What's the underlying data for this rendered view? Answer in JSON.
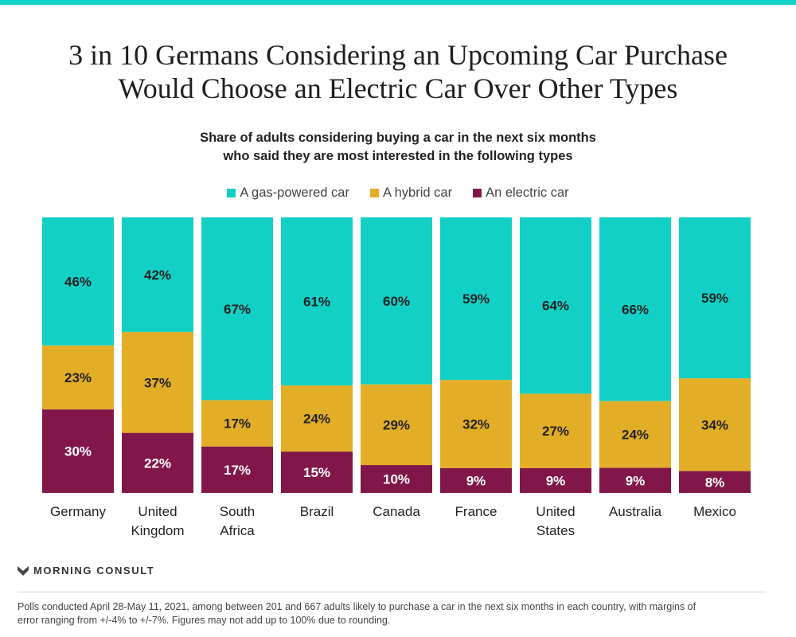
{
  "title_line1": "3 in 10 Germans Considering an Upcoming Car Purchase",
  "title_line2": "Would Choose an Electric Car Over Other Types",
  "subtitle_line1": "Share of adults considering buying a car in the next six months",
  "subtitle_line2": "who said they are most interested in the following types",
  "brand": "MORNING CONSULT",
  "footnote_line1": "Polls conducted April 28-May 11, 2021, among between 201 and 667 adults likely to purchase a car in the next six months in each country, with margins of",
  "footnote_line2": "error ranging from +/-4% to +/-7%. Figures may not add up to 100% due to rounding.",
  "colors": {
    "gas": "#12d0c6",
    "hybrid": "#e3ae27",
    "electric": "#811749",
    "top_rule": "#12d0c6"
  },
  "chart_data": {
    "type": "bar",
    "stacked": true,
    "categories": [
      [
        "Germany"
      ],
      [
        "United",
        "Kingdom"
      ],
      [
        "South",
        "Africa"
      ],
      [
        "Brazil"
      ],
      [
        "Canada"
      ],
      [
        "France"
      ],
      [
        "United",
        "States"
      ],
      [
        "Australia"
      ],
      [
        "Mexico"
      ]
    ],
    "series": [
      {
        "name": "An electric car",
        "key": "electric",
        "values": [
          30,
          22,
          17,
          15,
          10,
          9,
          9,
          9,
          8
        ]
      },
      {
        "name": "A hybrid car",
        "key": "hybrid",
        "values": [
          23,
          37,
          17,
          24,
          29,
          32,
          27,
          24,
          34
        ]
      },
      {
        "name": "A gas-powered car",
        "key": "gas",
        "values": [
          46,
          42,
          67,
          61,
          60,
          59,
          64,
          66,
          59
        ]
      }
    ],
    "legend_order": [
      "gas",
      "hybrid",
      "electric"
    ],
    "value_suffix": "%",
    "ylim": [
      0,
      100
    ],
    "grid": false,
    "legend_position": "top-center"
  }
}
